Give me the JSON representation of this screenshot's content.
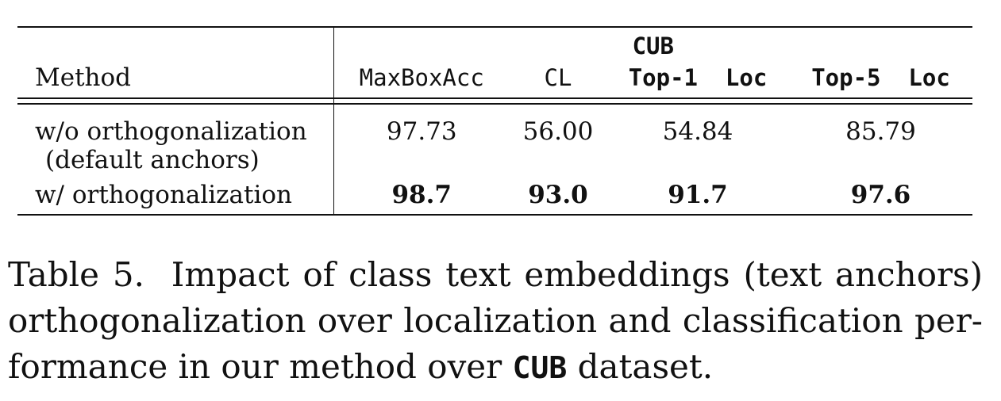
{
  "table": {
    "group_header": "CUB",
    "columns": [
      "Method",
      "MaxBoxAcc",
      "CL",
      "Top-1  Loc",
      "Top-5  Loc"
    ],
    "rows": [
      {
        "method_line1": "w/o orthogonalization",
        "method_line2": "(default anchors)",
        "values": [
          "97.73",
          "56.00",
          "54.84",
          "85.79"
        ]
      },
      {
        "method_line1": "w/ orthogonalization",
        "values": [
          "98.7",
          "93.0",
          "91.7",
          "97.6"
        ]
      }
    ]
  },
  "caption": {
    "label": "Table 5.",
    "text_before": "Impact of class text embeddings (text anchors) orthogonalization over localization and classification per-formance in our method over",
    "dataset": "CUB",
    "text_after": "dataset."
  }
}
